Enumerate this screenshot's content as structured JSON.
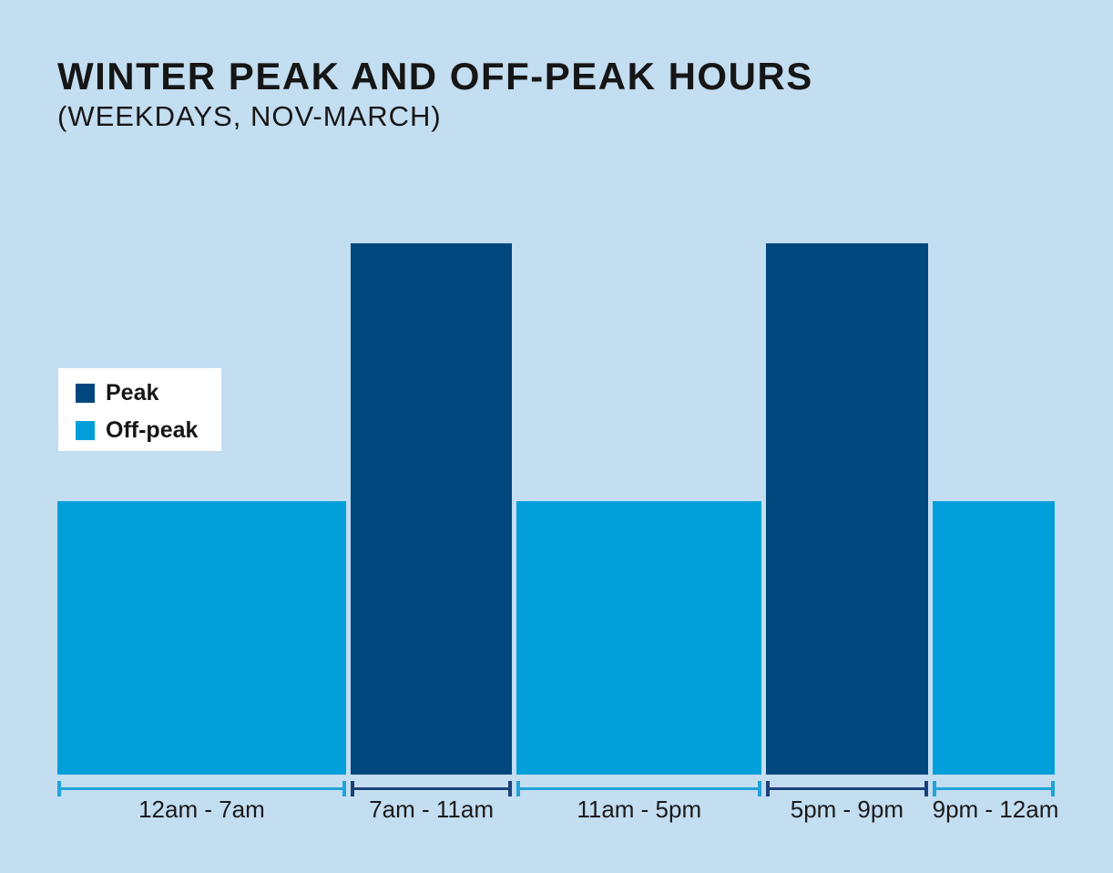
{
  "title": "WINTER PEAK AND OFF-PEAK HOURS",
  "subtitle": "(WEEKDAYS, NOV-MARCH)",
  "legend": {
    "items": [
      {
        "label": "Peak",
        "level": "peak"
      },
      {
        "label": "Off-peak",
        "level": "offpeak"
      }
    ]
  },
  "colors": {
    "background": "#c3ddf1",
    "peak": "#00477e",
    "offpeak": "#009fda",
    "peak_axis": "#1c4178",
    "offpeak_axis": "#21a3d9",
    "text": "#161616",
    "legend_background": "#ffffff"
  },
  "chart_data": {
    "type": "bar",
    "title": "WINTER PEAK AND OFF-PEAK HOURS",
    "subtitle": "(WEEKDAYS, NOV-MARCH)",
    "categories": [
      "12am - 7am",
      "7am - 11am",
      "11am - 5pm",
      "5pm - 9pm",
      "9pm - 12am"
    ],
    "levels": [
      "offpeak",
      "peak",
      "offpeak",
      "peak",
      "offpeak"
    ],
    "values": [
      1,
      2,
      1,
      2,
      1
    ],
    "segments": [
      {
        "label": "12am - 7am",
        "level": "offpeak",
        "start": 0,
        "end": 7
      },
      {
        "label": "7am - 11am",
        "level": "peak",
        "start": 7,
        "end": 11
      },
      {
        "label": "11am - 5pm",
        "level": "offpeak",
        "start": 11,
        "end": 17
      },
      {
        "label": "5pm - 9pm",
        "level": "peak",
        "start": 17,
        "end": 21
      },
      {
        "label": "9pm - 12am",
        "level": "offpeak",
        "start": 21,
        "end": 24
      }
    ],
    "legend_entries": [
      "Peak",
      "Off-peak"
    ],
    "xlabel": "",
    "ylabel": "",
    "notes": "No numeric y-axis; taller bars denote peak periods, shorter bars off-peak. X axis spans 24 weekday hours with bracketed range markers under each bar."
  }
}
